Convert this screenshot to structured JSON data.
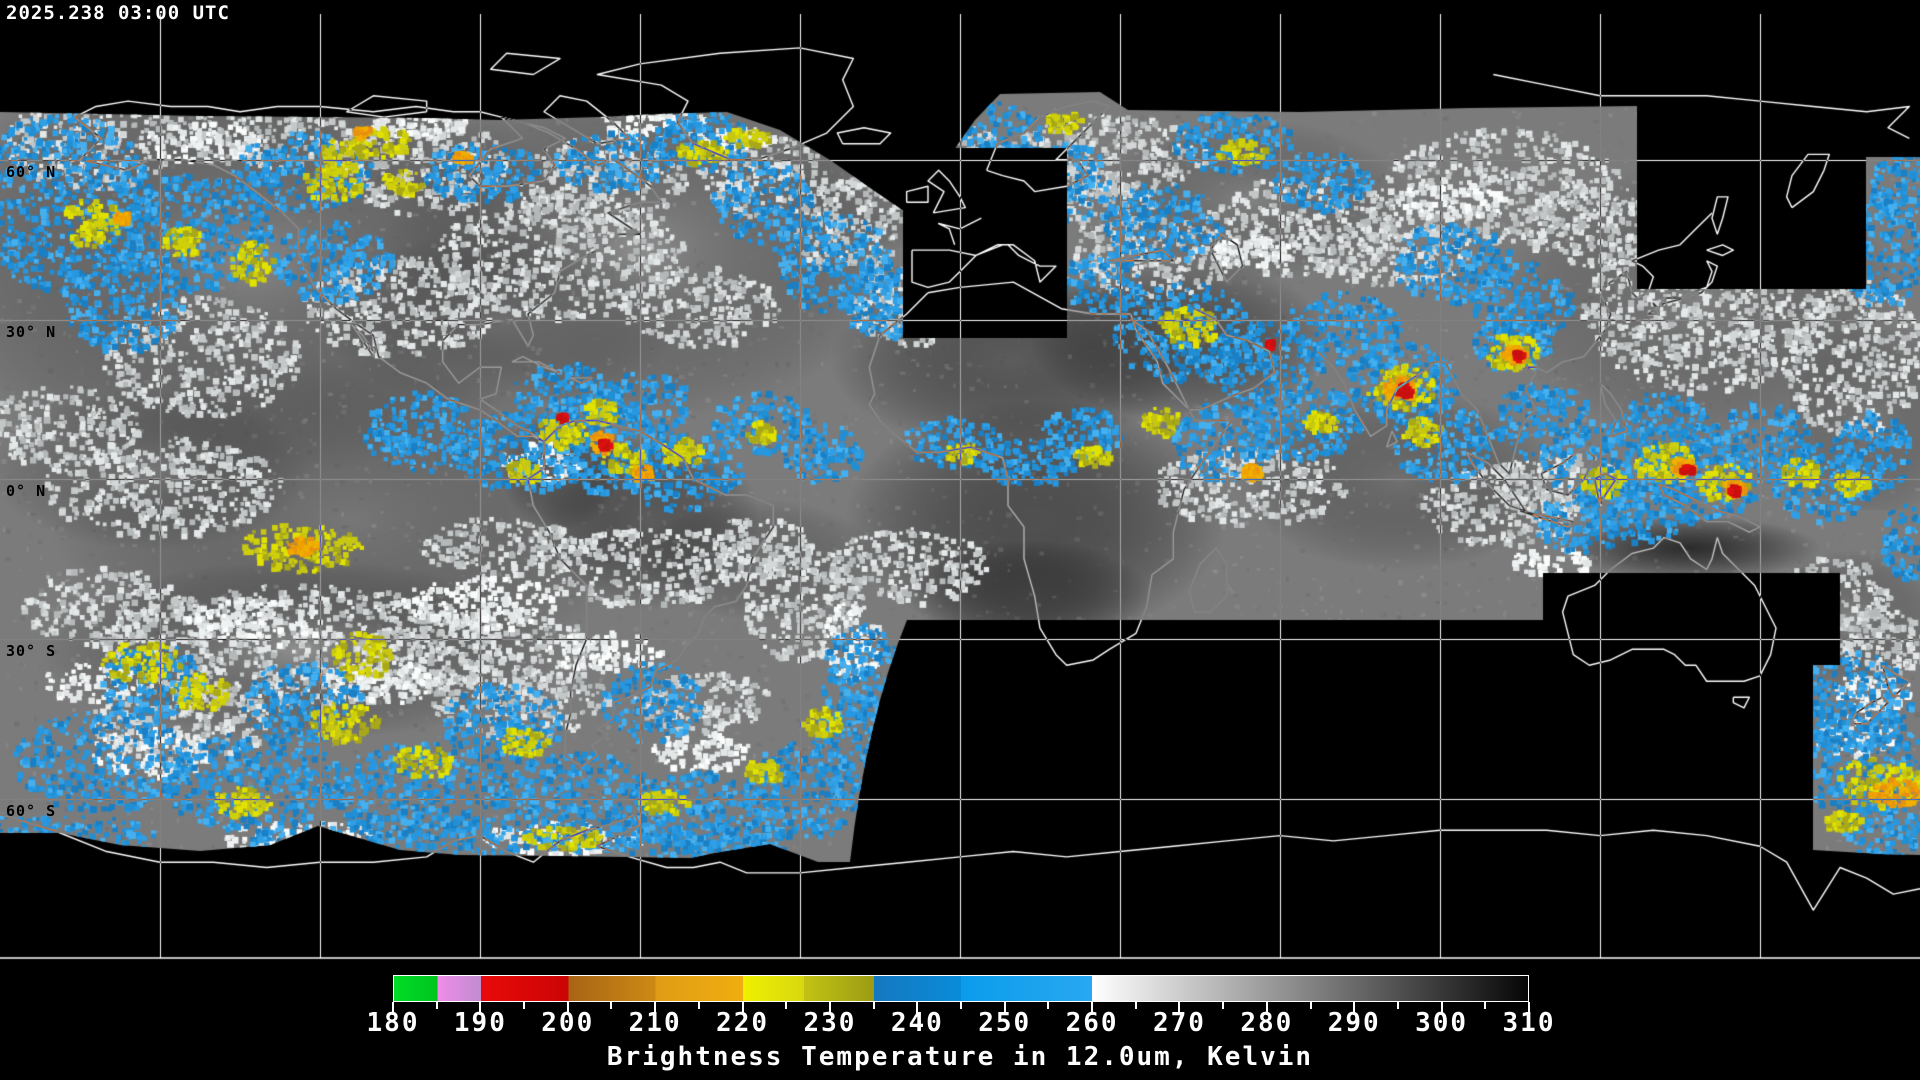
{
  "header": {
    "timestamp": "2025.238 03:00 UTC"
  },
  "map": {
    "latitude_labels": [
      {
        "text": "60° N"
      },
      {
        "text": "30° N"
      },
      {
        "text": "0° N"
      },
      {
        "text": "30° S"
      },
      {
        "text": "60° S"
      }
    ],
    "grid": {
      "lon_step_deg": 30,
      "lat_step_deg": 30
    },
    "no_data_color": "#000000",
    "coastline_note": "coastlines drawn inverted (white on black, dark on cloud)"
  },
  "colorbar": {
    "caption": "Brightness Temperature in 12.0um, Kelvin",
    "unit": "Kelvin",
    "min": 180,
    "max": 310,
    "major_tick_step": 10,
    "minor_tick_step": 5,
    "ticks": [
      180,
      190,
      200,
      210,
      220,
      230,
      240,
      250,
      260,
      270,
      280,
      290,
      300,
      310
    ],
    "segments": [
      {
        "from": 180,
        "to": 185,
        "from_color": "#00DC28",
        "to_color": "#00C41E"
      },
      {
        "from": 185,
        "to": 190,
        "from_color": "#F08CE8",
        "to_color": "#C08CD0"
      },
      {
        "from": 190,
        "to": 200,
        "from_color": "#E80A0A",
        "to_color": "#CC0404"
      },
      {
        "from": 200,
        "to": 210,
        "from_color": "#A86414",
        "to_color": "#CC8A14"
      },
      {
        "from": 210,
        "to": 220,
        "from_color": "#E09C14",
        "to_color": "#EFAE10"
      },
      {
        "from": 220,
        "to": 227,
        "from_color": "#F0F000",
        "to_color": "#D8D810"
      },
      {
        "from": 227,
        "to": 235,
        "from_color": "#C2C214",
        "to_color": "#9C9C14"
      },
      {
        "from": 235,
        "to": 245,
        "from_color": "#1478C0",
        "to_color": "#0A8CD8"
      },
      {
        "from": 245,
        "to": 260,
        "from_color": "#0A9CEC",
        "to_color": "#28A8F0"
      },
      {
        "from": 260,
        "to": 310,
        "from_color": "#FFFFFF",
        "to_color": "#060606"
      }
    ]
  }
}
